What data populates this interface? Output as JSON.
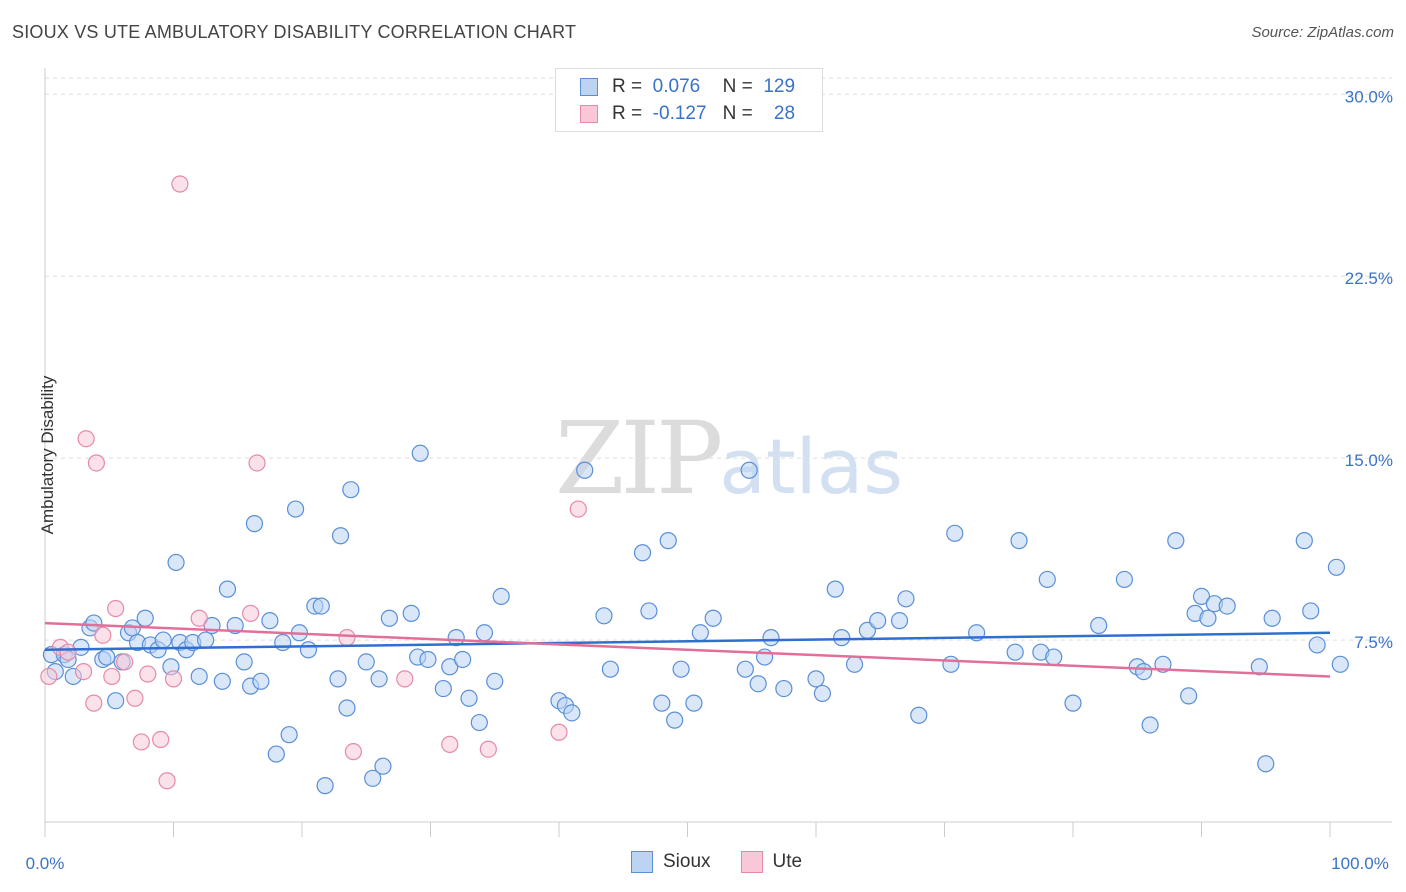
{
  "title": "SIOUX VS UTE AMBULATORY DISABILITY CORRELATION CHART",
  "source": "Source: ZipAtlas.com",
  "watermark": {
    "zip": "ZIP",
    "atlas": "atlas"
  },
  "legend": {
    "rows": [
      {
        "r_label": "R =",
        "r_value": "0.076",
        "n_label": "N =",
        "n_value": "129",
        "color": "#5a8fd8",
        "fill": "#bcd3f2"
      },
      {
        "r_label": "R =",
        "r_value": "-0.127",
        "n_label": "N =",
        "n_value": "28",
        "color": "#e58aa8",
        "fill": "#f8c8d8"
      }
    ]
  },
  "bottom_legend": [
    {
      "label": "Sioux",
      "color": "#5a8fd8",
      "fill": "#bcd3f2"
    },
    {
      "label": "Ute",
      "color": "#e58aa8",
      "fill": "#f8c8d8"
    }
  ],
  "chart_data": {
    "type": "scatter",
    "title": "SIOUX VS UTE AMBULATORY DISABILITY CORRELATION CHART",
    "xlabel": "",
    "ylabel": "Ambulatory Disability",
    "xlim": [
      0,
      100
    ],
    "ylim": [
      0,
      31
    ],
    "x_tick_labels": [
      "0.0%",
      "100.0%"
    ],
    "y_ticks": [
      7.5,
      15.0,
      22.5,
      30.0
    ],
    "y_tick_labels": [
      "7.5%",
      "15.0%",
      "22.5%",
      "30.0%"
    ],
    "series": [
      {
        "name": "Sioux",
        "color": "#5a8fd8",
        "trend": [
          [
            0,
            7.1
          ],
          [
            100,
            7.8
          ]
        ],
        "points": [
          [
            0.5,
            6.9
          ],
          [
            0.8,
            6.2
          ],
          [
            1.5,
            6.9
          ],
          [
            1.8,
            6.7
          ],
          [
            2.2,
            6.0
          ],
          [
            2.8,
            7.2
          ],
          [
            3.5,
            8.0
          ],
          [
            3.8,
            8.2
          ],
          [
            4.5,
            6.7
          ],
          [
            4.8,
            6.8
          ],
          [
            5.5,
            5.0
          ],
          [
            6.0,
            6.6
          ],
          [
            6.5,
            7.8
          ],
          [
            6.8,
            8.0
          ],
          [
            7.2,
            7.4
          ],
          [
            7.8,
            8.4
          ],
          [
            8.2,
            7.3
          ],
          [
            8.8,
            7.1
          ],
          [
            9.2,
            7.5
          ],
          [
            9.8,
            6.4
          ],
          [
            10.2,
            10.7
          ],
          [
            10.5,
            7.4
          ],
          [
            11.0,
            7.1
          ],
          [
            11.5,
            7.4
          ],
          [
            12.0,
            6.0
          ],
          [
            12.5,
            7.5
          ],
          [
            13.0,
            8.1
          ],
          [
            13.8,
            5.8
          ],
          [
            14.2,
            9.6
          ],
          [
            14.8,
            8.1
          ],
          [
            15.5,
            6.6
          ],
          [
            16.0,
            5.6
          ],
          [
            16.3,
            12.3
          ],
          [
            16.8,
            5.8
          ],
          [
            17.5,
            8.3
          ],
          [
            18.0,
            2.8
          ],
          [
            18.5,
            7.4
          ],
          [
            19.0,
            3.6
          ],
          [
            19.5,
            12.9
          ],
          [
            19.8,
            7.8
          ],
          [
            20.5,
            7.1
          ],
          [
            21.0,
            8.9
          ],
          [
            21.5,
            8.9
          ],
          [
            21.8,
            1.5
          ],
          [
            22.8,
            5.9
          ],
          [
            23.0,
            11.8
          ],
          [
            23.5,
            4.7
          ],
          [
            23.8,
            13.7
          ],
          [
            25.0,
            6.6
          ],
          [
            25.5,
            1.8
          ],
          [
            26.0,
            5.9
          ],
          [
            26.3,
            2.3
          ],
          [
            26.8,
            8.4
          ],
          [
            28.5,
            8.6
          ],
          [
            29.0,
            6.8
          ],
          [
            29.2,
            15.2
          ],
          [
            29.8,
            6.7
          ],
          [
            31.0,
            5.5
          ],
          [
            31.5,
            6.4
          ],
          [
            32.0,
            7.6
          ],
          [
            32.5,
            6.7
          ],
          [
            33.0,
            5.1
          ],
          [
            33.8,
            4.1
          ],
          [
            34.2,
            7.8
          ],
          [
            35.0,
            5.8
          ],
          [
            35.5,
            9.3
          ],
          [
            40.0,
            5.0
          ],
          [
            40.5,
            4.8
          ],
          [
            41.0,
            4.5
          ],
          [
            42.0,
            14.5
          ],
          [
            43.5,
            8.5
          ],
          [
            44.0,
            6.3
          ],
          [
            46.5,
            11.1
          ],
          [
            47.0,
            8.7
          ],
          [
            48.0,
            4.9
          ],
          [
            48.5,
            11.6
          ],
          [
            49.0,
            4.2
          ],
          [
            49.5,
            6.3
          ],
          [
            50.5,
            4.9
          ],
          [
            51.0,
            7.8
          ],
          [
            52.0,
            8.4
          ],
          [
            54.5,
            6.3
          ],
          [
            54.8,
            14.5
          ],
          [
            55.5,
            5.7
          ],
          [
            56.0,
            6.8
          ],
          [
            56.5,
            7.6
          ],
          [
            57.5,
            5.5
          ],
          [
            60.0,
            5.9
          ],
          [
            60.5,
            5.3
          ],
          [
            61.5,
            9.6
          ],
          [
            62.0,
            7.6
          ],
          [
            63.0,
            6.5
          ],
          [
            64.0,
            7.9
          ],
          [
            64.8,
            8.3
          ],
          [
            66.5,
            8.3
          ],
          [
            67.0,
            9.2
          ],
          [
            68.0,
            4.4
          ],
          [
            70.5,
            6.5
          ],
          [
            70.8,
            11.9
          ],
          [
            72.5,
            7.8
          ],
          [
            75.5,
            7.0
          ],
          [
            75.8,
            11.6
          ],
          [
            77.5,
            7.0
          ],
          [
            78.0,
            10.0
          ],
          [
            78.5,
            6.8
          ],
          [
            80.0,
            4.9
          ],
          [
            82.0,
            8.1
          ],
          [
            84.0,
            10.0
          ],
          [
            85.0,
            6.4
          ],
          [
            85.5,
            6.2
          ],
          [
            86.0,
            4.0
          ],
          [
            87.0,
            6.5
          ],
          [
            88.0,
            11.6
          ],
          [
            89.0,
            5.2
          ],
          [
            89.5,
            8.6
          ],
          [
            90.0,
            9.3
          ],
          [
            90.5,
            8.4
          ],
          [
            91.0,
            9.0
          ],
          [
            92.0,
            8.9
          ],
          [
            94.5,
            6.4
          ],
          [
            95.0,
            2.4
          ],
          [
            95.5,
            8.4
          ],
          [
            98.0,
            11.6
          ],
          [
            98.5,
            8.7
          ],
          [
            99.0,
            7.3
          ],
          [
            100.5,
            10.5
          ],
          [
            100.8,
            6.5
          ]
        ]
      },
      {
        "name": "Ute",
        "color": "#e58aa8",
        "trend": [
          [
            0,
            8.2
          ],
          [
            100,
            6.0
          ]
        ],
        "points": [
          [
            0.3,
            6.0
          ],
          [
            1.2,
            7.2
          ],
          [
            1.8,
            7.0
          ],
          [
            3.0,
            6.2
          ],
          [
            3.2,
            15.8
          ],
          [
            3.8,
            4.9
          ],
          [
            4.0,
            14.8
          ],
          [
            4.5,
            7.7
          ],
          [
            5.2,
            6.0
          ],
          [
            5.5,
            8.8
          ],
          [
            6.2,
            6.6
          ],
          [
            7.0,
            5.1
          ],
          [
            7.5,
            3.3
          ],
          [
            8.0,
            6.1
          ],
          [
            9.0,
            3.4
          ],
          [
            9.5,
            1.7
          ],
          [
            10.0,
            5.9
          ],
          [
            10.5,
            26.3
          ],
          [
            12.0,
            8.4
          ],
          [
            16.0,
            8.6
          ],
          [
            16.5,
            14.8
          ],
          [
            23.5,
            7.6
          ],
          [
            24.0,
            2.9
          ],
          [
            28.0,
            5.9
          ],
          [
            31.5,
            3.2
          ],
          [
            34.5,
            3.0
          ],
          [
            40.0,
            3.7
          ],
          [
            41.5,
            12.9
          ]
        ]
      }
    ]
  }
}
